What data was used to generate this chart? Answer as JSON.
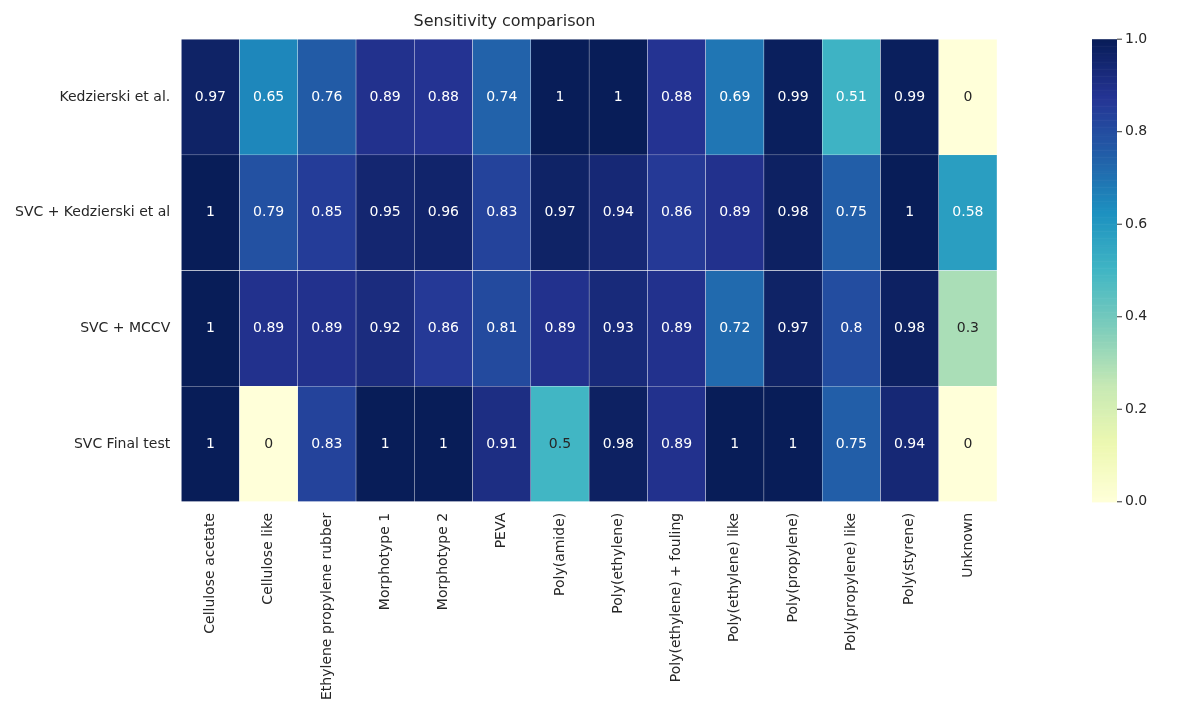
{
  "chart_data": {
    "type": "heatmap",
    "title": "Sensitivity comparison",
    "categories": [
      "Cellulose acetate",
      "Cellulose like",
      "Ethylene propylene rubber",
      "Morphotype 1",
      "Morphotype 2",
      "PEVA",
      "Poly(amide)",
      "Poly(ethylene)",
      "Poly(ethylene) + fouling",
      "Poly(ethylene) like",
      "Poly(propylene)",
      "Poly(propylene) like",
      "Poly(styrene)",
      "Unknown"
    ],
    "y_categories": [
      "Kedzierski et al.",
      "SVC + Kedzierski et al",
      "SVC + MCCV",
      "SVC Final test"
    ],
    "cells": [
      [
        0.97,
        0.65,
        0.76,
        0.89,
        0.88,
        0.74,
        1,
        1,
        0.88,
        0.69,
        0.99,
        0.51,
        0.99,
        0
      ],
      [
        1,
        0.79,
        0.85,
        0.95,
        0.96,
        0.83,
        0.97,
        0.94,
        0.86,
        0.89,
        0.98,
        0.75,
        1,
        0.58
      ],
      [
        1,
        0.89,
        0.89,
        0.92,
        0.86,
        0.81,
        0.89,
        0.93,
        0.89,
        0.72,
        0.97,
        0.8,
        0.98,
        0.3
      ],
      [
        1,
        0,
        0.83,
        1,
        1,
        0.91,
        0.5,
        0.98,
        0.89,
        1,
        1,
        0.75,
        0.94,
        0
      ]
    ],
    "clim": [
      0,
      1
    ],
    "cticks": [
      {
        "value": 0,
        "label": "0.0"
      },
      0.2,
      0.4,
      0.6,
      0.8,
      {
        "value": 1,
        "label": "1.0"
      }
    ],
    "data_labels": true
  }
}
